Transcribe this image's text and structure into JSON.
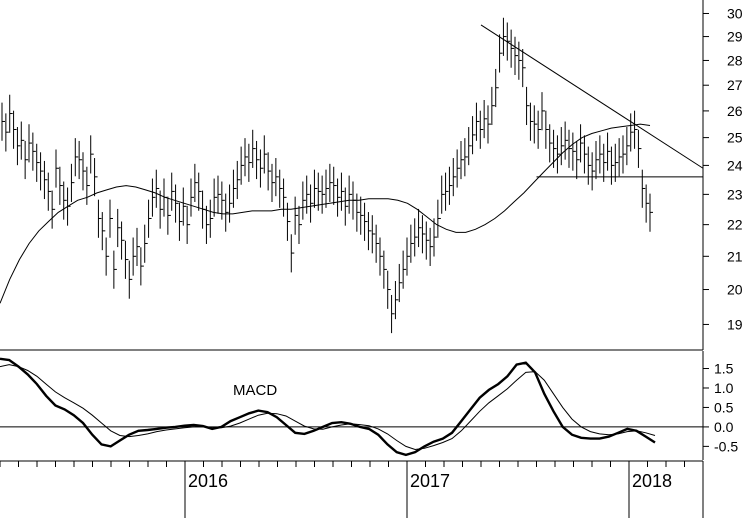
{
  "chart_data": [
    {
      "type": "ohlc",
      "panel": "price",
      "yaxis": {
        "position": "right",
        "ticks": [
          19,
          20,
          21,
          22,
          23,
          24,
          25,
          26,
          27,
          28,
          29,
          30
        ],
        "scale": "log",
        "ylim": [
          18.3,
          30.6
        ]
      },
      "x_range": [
        "2015-03",
        "2018-05"
      ],
      "bar_interval": "weekly",
      "bars_close": [
        25.6,
        25.2,
        25.9,
        25.3,
        24.7,
        24.9,
        24.2,
        24.8,
        24.5,
        24.1,
        23.8,
        23.5,
        23.1,
        22.5,
        23.9,
        23.3,
        22.8,
        22.6,
        23.4,
        24.3,
        24.2,
        23.8,
        23.3,
        24.4,
        23.6,
        22.2,
        21.8,
        21.0,
        22.2,
        20.6,
        21.9,
        21.5,
        20.9,
        20.3,
        21.0,
        21.3,
        20.7,
        21.4,
        22.2,
        22.9,
        23.2,
        22.5,
        22.9,
        22.3,
        23.1,
        22.7,
        22.1,
        22.6,
        22.0,
        22.9,
        23.4,
        23.1,
        22.5,
        22.0,
        22.2,
        22.9,
        23.0,
        22.8,
        22.4,
        22.7,
        23.2,
        23.5,
        24.0,
        24.3,
        24.1,
        24.6,
        24.2,
        23.9,
        24.4,
        23.8,
        23.4,
        23.6,
        23.2,
        22.9,
        22.1,
        21.1,
        22.3,
        22.0,
        22.8,
        23.0,
        22.7,
        23.2,
        23.1,
        23.0,
        23.2,
        23.4,
        23.3,
        22.9,
        23.1,
        22.6,
        23.0,
        22.8,
        22.4,
        22.3,
        22.1,
        21.8,
        21.7,
        21.4,
        21.0,
        20.6,
        20.0,
        19.3,
        19.7,
        20.2,
        20.6,
        21.0,
        21.4,
        21.6,
        21.9,
        21.7,
        21.5,
        21.3,
        21.6,
        22.2,
        23.0,
        23.1,
        23.3,
        23.6,
        23.9,
        24.2,
        24.3,
        24.7,
        25.1,
        25.6,
        25.3,
        25.7,
        25.5,
        26.2,
        26.9,
        28.3,
        29.0,
        28.8,
        28.5,
        28.2,
        28.0,
        27.7,
        26.2,
        25.6,
        25.5,
        25.3,
        26.0,
        25.3,
        24.8,
        24.6,
        24.4,
        24.7,
        24.9,
        24.6,
        24.5,
        24.2,
        24.8,
        24.4,
        24.0,
        23.8,
        24.2,
        24.4,
        24.1,
        24.5,
        24.0,
        24.1,
        24.3,
        24.4,
        24.7,
        25.2,
        25.3,
        24.6,
        23.2,
        22.7,
        22.4
      ]
    },
    {
      "type": "line",
      "panel": "price",
      "series": [
        {
          "kind": "moving-average",
          "values": [
            19.6,
            20.3,
            20.9,
            21.4,
            21.8,
            22.1,
            22.4,
            22.6,
            22.8,
            22.9,
            23.05,
            23.15,
            23.25,
            23.3,
            23.25,
            23.15,
            23.05,
            22.9,
            22.8,
            22.7,
            22.6,
            22.5,
            22.4,
            22.35,
            22.35,
            22.4,
            22.45,
            22.45,
            22.45,
            22.5,
            22.5,
            22.55,
            22.6,
            22.65,
            22.7,
            22.75,
            22.8,
            22.8,
            22.85,
            22.85,
            22.85,
            22.8,
            22.7,
            22.5,
            22.25,
            22.0,
            21.85,
            21.75,
            21.75,
            21.85,
            22.0,
            22.2,
            22.45,
            22.75,
            23.05,
            23.4,
            23.75,
            24.1,
            24.45,
            24.75,
            25.0,
            25.15,
            25.25,
            25.35,
            25.4,
            25.45,
            25.5,
            25.45
          ]
        }
      ]
    },
    {
      "type": "line",
      "panel": "price",
      "series": [
        {
          "kind": "trendline-resistance",
          "points": [
            [
              "2017-05",
              29.5
            ],
            [
              "2018-05",
              23.9
            ]
          ]
        },
        {
          "kind": "horizontal-support",
          "points": [
            [
              "2017-08",
              23.6
            ],
            [
              "2018-05",
              23.6
            ]
          ]
        }
      ]
    },
    {
      "type": "line",
      "panel": "indicator",
      "title": "MACD",
      "yaxis": {
        "position": "right",
        "ticks": [
          "1.5",
          "1.0",
          "0.5",
          "0.0",
          "-0.5"
        ],
        "ylim": [
          -0.85,
          1.95
        ]
      },
      "zero_line": true,
      "series": [
        {
          "kind": "macd",
          "values": [
            1.75,
            1.72,
            1.55,
            1.35,
            1.1,
            0.8,
            0.55,
            0.45,
            0.3,
            0.1,
            -0.2,
            -0.45,
            -0.5,
            -0.35,
            -0.2,
            -0.1,
            -0.08,
            -0.05,
            -0.02,
            0.0,
            0.03,
            0.05,
            0.02,
            -0.05,
            0.0,
            0.15,
            0.25,
            0.35,
            0.42,
            0.38,
            0.25,
            0.05,
            -0.15,
            -0.18,
            -0.1,
            0.0,
            0.1,
            0.12,
            0.08,
            0.0,
            -0.05,
            -0.2,
            -0.45,
            -0.65,
            -0.72,
            -0.65,
            -0.5,
            -0.38,
            -0.3,
            -0.15,
            0.15,
            0.45,
            0.75,
            0.95,
            1.1,
            1.3,
            1.6,
            1.65,
            1.4,
            0.85,
            0.4,
            0.0,
            -0.2,
            -0.28,
            -0.3,
            -0.3,
            -0.25,
            -0.15,
            -0.05,
            -0.1,
            -0.25,
            -0.4
          ]
        },
        {
          "kind": "signal",
          "values": [
            1.55,
            1.6,
            1.55,
            1.45,
            1.3,
            1.1,
            0.9,
            0.75,
            0.62,
            0.48,
            0.3,
            0.1,
            -0.1,
            -0.22,
            -0.25,
            -0.22,
            -0.18,
            -0.12,
            -0.08,
            -0.05,
            -0.02,
            0.0,
            0.0,
            -0.01,
            -0.02,
            0.02,
            0.1,
            0.2,
            0.3,
            0.35,
            0.34,
            0.28,
            0.15,
            0.02,
            -0.05,
            -0.06,
            0.0,
            0.05,
            0.08,
            0.06,
            0.03,
            -0.05,
            -0.18,
            -0.35,
            -0.5,
            -0.58,
            -0.55,
            -0.48,
            -0.4,
            -0.3,
            -0.1,
            0.15,
            0.4,
            0.62,
            0.8,
            0.98,
            1.2,
            1.4,
            1.42,
            1.2,
            0.85,
            0.5,
            0.2,
            0.0,
            -0.12,
            -0.18,
            -0.2,
            -0.18,
            -0.12,
            -0.1,
            -0.15,
            -0.22
          ]
        }
      ]
    },
    {
      "type": "axis",
      "panel": "time",
      "x_tick_labels": [
        "2016",
        "2017",
        "2018"
      ]
    }
  ]
}
